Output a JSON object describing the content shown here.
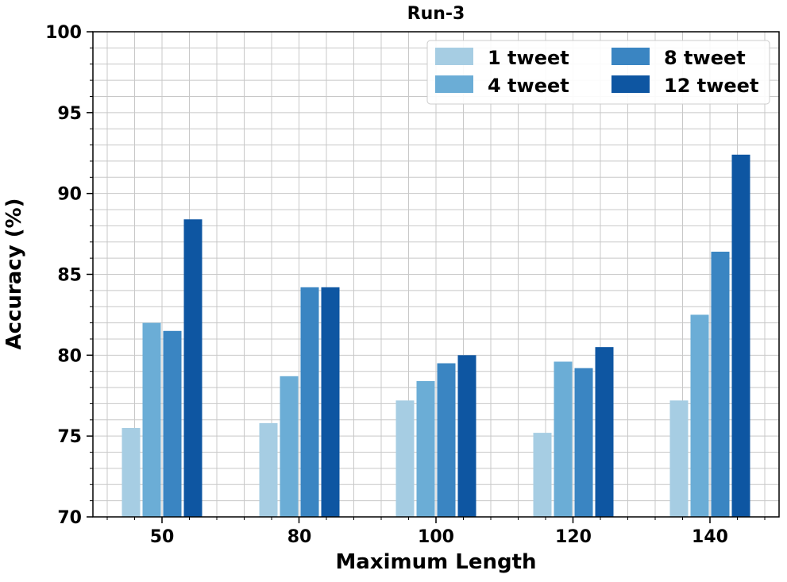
{
  "chart_data": {
    "type": "bar",
    "title": "Run-3",
    "xlabel": "Maximum Length",
    "ylabel": "Accuracy (%)",
    "categories": [
      "50",
      "80",
      "100",
      "120",
      "140"
    ],
    "ylim": [
      70,
      100
    ],
    "yticks": [
      70,
      75,
      80,
      85,
      90,
      95,
      100
    ],
    "grid": true,
    "legend_position": "top-right",
    "series": [
      {
        "name": "1 tweet",
        "color": "#a6cde3",
        "values": [
          75.5,
          75.8,
          77.2,
          75.2,
          77.2
        ]
      },
      {
        "name": "4 tweet",
        "color": "#6badd6",
        "values": [
          82.0,
          78.7,
          78.4,
          79.6,
          82.5
        ]
      },
      {
        "name": "8 tweet",
        "color": "#3a85c2",
        "values": [
          81.5,
          84.2,
          79.5,
          79.2,
          86.4
        ]
      },
      {
        "name": "12 tweet",
        "color": "#0e56a2",
        "values": [
          88.4,
          84.2,
          80.0,
          80.5,
          92.4
        ]
      }
    ]
  }
}
